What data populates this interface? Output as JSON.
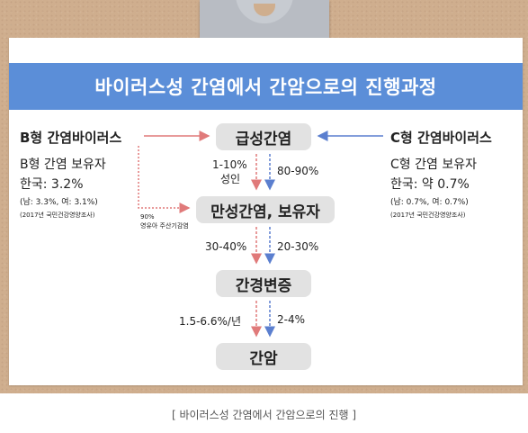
{
  "title": "바이러스성 간염에서 간암으로의 진행과정",
  "stages": {
    "acute": "급성간염",
    "chronic": "만성간염, 보유자",
    "cirrhosis": "간경변증",
    "cancer": "간암"
  },
  "left": {
    "virus": "B형 간염바이러스",
    "carrier": "B형 간염 보유자",
    "korea": "한국: 3.2%",
    "gender": "(남: 3.3%, 여: 3.1%)",
    "source": "(2017년 국민건강영양조사)",
    "infant_pct": "90%",
    "infant_label": "영유아 주산기감염"
  },
  "right": {
    "virus": "C형 간염바이러스",
    "carrier": "C형 간염 보유자",
    "korea": "한국: 약 0.7%",
    "gender": "(남: 0.7%, 여: 0.7%)",
    "source": "(2017년 국민건강영양조사)"
  },
  "rates": {
    "acute_to_chronic_b": "1-10%",
    "acute_to_chronic_b_note": "성인",
    "acute_to_chronic_c": "80-90%",
    "chronic_to_cirrhosis_b": "30-40%",
    "chronic_to_cirrhosis_c": "20-30%",
    "cirrhosis_to_cancer_b": "1.5-6.6%/년",
    "cirrhosis_to_cancer_c": "2-4%"
  },
  "caption": "[ 바이러스성 간염에서 간암으로의 진행 ]",
  "colors": {
    "banner": "#5b8ed8",
    "hbv_arrow": "#e07a7a",
    "hcv_arrow": "#5b7fcf",
    "box": "#e2e2e2",
    "board": "#cfae8e"
  }
}
